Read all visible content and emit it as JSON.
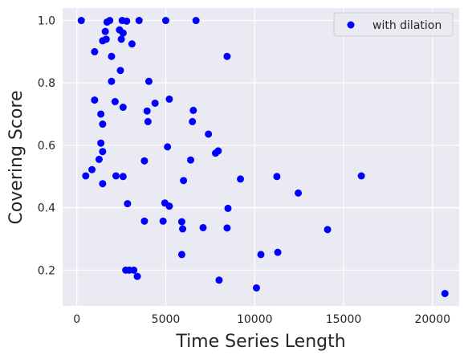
{
  "chart_data": {
    "type": "scatter",
    "xlabel": "Time Series Length",
    "ylabel": "Covering Score",
    "xlim": [
      -800,
      21500
    ],
    "ylim": [
      0.085,
      1.04
    ],
    "xticks": [
      0,
      5000,
      10000,
      15000,
      20000
    ],
    "xtick_labels": [
      "0",
      "5000",
      "10000",
      "15000",
      "20000"
    ],
    "yticks": [
      0.2,
      0.4,
      0.6,
      0.8,
      1.0
    ],
    "ytick_labels": [
      "0.2",
      "0.4",
      "0.6",
      "0.8",
      "1.0"
    ],
    "grid": true,
    "legend_position": "top-right",
    "colors": {
      "background": "#eaeaf2",
      "grid": "#ffffff",
      "marker": "#0000ff"
    },
    "series": [
      {
        "name": "with dilation",
        "points": [
          [
            250,
            1.0
          ],
          [
            1700,
            0.995
          ],
          [
            1850,
            1.0
          ],
          [
            2550,
            1.0
          ],
          [
            2800,
            0.998
          ],
          [
            3500,
            1.0
          ],
          [
            5000,
            1.0
          ],
          [
            6700,
            1.0
          ],
          [
            2400,
            0.97
          ],
          [
            2600,
            0.96
          ],
          [
            1600,
            0.965
          ],
          [
            1450,
            0.935
          ],
          [
            1650,
            0.94
          ],
          [
            2500,
            0.94
          ],
          [
            3100,
            0.925
          ],
          [
            1000,
            0.9
          ],
          [
            1950,
            0.885
          ],
          [
            8450,
            0.885
          ],
          [
            2450,
            0.84
          ],
          [
            1950,
            0.805
          ],
          [
            4050,
            0.805
          ],
          [
            1000,
            0.745
          ],
          [
            2150,
            0.74
          ],
          [
            5200,
            0.748
          ],
          [
            4400,
            0.735
          ],
          [
            2600,
            0.722
          ],
          [
            3950,
            0.71
          ],
          [
            6550,
            0.712
          ],
          [
            1350,
            0.7
          ],
          [
            1450,
            0.668
          ],
          [
            4000,
            0.676
          ],
          [
            6500,
            0.676
          ],
          [
            7400,
            0.636
          ],
          [
            1350,
            0.607
          ],
          [
            5100,
            0.595
          ],
          [
            1450,
            0.58
          ],
          [
            7800,
            0.575
          ],
          [
            7950,
            0.582
          ],
          [
            1250,
            0.555
          ],
          [
            3800,
            0.55
          ],
          [
            6400,
            0.553
          ],
          [
            850,
            0.522
          ],
          [
            500,
            0.502
          ],
          [
            2200,
            0.502
          ],
          [
            2600,
            0.5
          ],
          [
            11250,
            0.5
          ],
          [
            16000,
            0.502
          ],
          [
            1450,
            0.477
          ],
          [
            6000,
            0.487
          ],
          [
            9200,
            0.492
          ],
          [
            12450,
            0.447
          ],
          [
            2850,
            0.413
          ],
          [
            4950,
            0.415
          ],
          [
            5200,
            0.405
          ],
          [
            8500,
            0.398
          ],
          [
            3800,
            0.357
          ],
          [
            4850,
            0.357
          ],
          [
            5900,
            0.355
          ],
          [
            5950,
            0.332
          ],
          [
            7100,
            0.336
          ],
          [
            8450,
            0.335
          ],
          [
            14100,
            0.33
          ],
          [
            5900,
            0.25
          ],
          [
            10350,
            0.25
          ],
          [
            11300,
            0.257
          ],
          [
            2750,
            0.2
          ],
          [
            2950,
            0.2
          ],
          [
            3200,
            0.2
          ],
          [
            3400,
            0.18
          ],
          [
            8000,
            0.168
          ],
          [
            10100,
            0.143
          ],
          [
            20700,
            0.125
          ]
        ]
      }
    ]
  }
}
